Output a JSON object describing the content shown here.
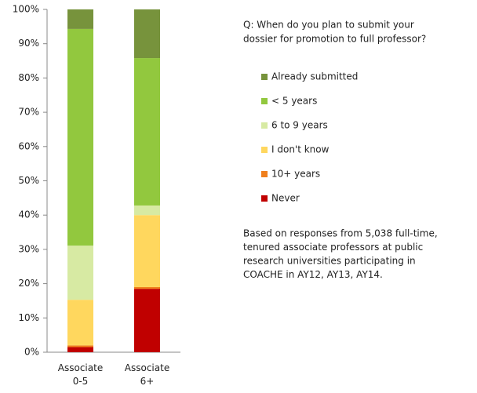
{
  "chart_data": {
    "type": "stacked_bar",
    "categories": [
      "Associate 0-5",
      "Associate 6+"
    ],
    "series": [
      {
        "name": "Never",
        "color": "#c00000",
        "values": [
          1.5,
          18.5
        ]
      },
      {
        "name": "10+ years",
        "color": "#f07f1c",
        "values": [
          0.5,
          0.5
        ]
      },
      {
        "name": "I don't know",
        "color": "#ffd75e",
        "values": [
          13.3,
          21
        ]
      },
      {
        "name": "6 to 9 years",
        "color": "#d7eaa3",
        "values": [
          15.8,
          2.8
        ]
      },
      {
        "name": "< 5 years",
        "color": "#92c83e",
        "values": [
          63.2,
          43
        ]
      },
      {
        "name": "Already submitted",
        "color": "#77933c",
        "values": [
          5.7,
          14.2
        ]
      }
    ],
    "ylim": [
      0,
      100
    ],
    "yticks": [
      {
        "value": 0,
        "label": "0%"
      },
      {
        "value": 10,
        "label": "10%"
      },
      {
        "value": 20,
        "label": "20%"
      },
      {
        "value": 30,
        "label": "30%"
      },
      {
        "value": 40,
        "label": "40%"
      },
      {
        "value": 50,
        "label": "50%"
      },
      {
        "value": 60,
        "label": "60%"
      },
      {
        "value": 70,
        "label": "70%"
      },
      {
        "value": 80,
        "label": "80%"
      },
      {
        "value": 90,
        "label": "90%"
      },
      {
        "value": 100,
        "label": "100%"
      }
    ],
    "grid": false,
    "legend": "right",
    "question": [
      "Q: When do you plan to submit your",
      "dossier for promotion to full professor?"
    ],
    "note": [
      "Based on responses from 5,038 full-time,",
      "tenured associate professors at public",
      "research universities participating in",
      "COACHE  in AY12, AY13, AY14."
    ]
  }
}
